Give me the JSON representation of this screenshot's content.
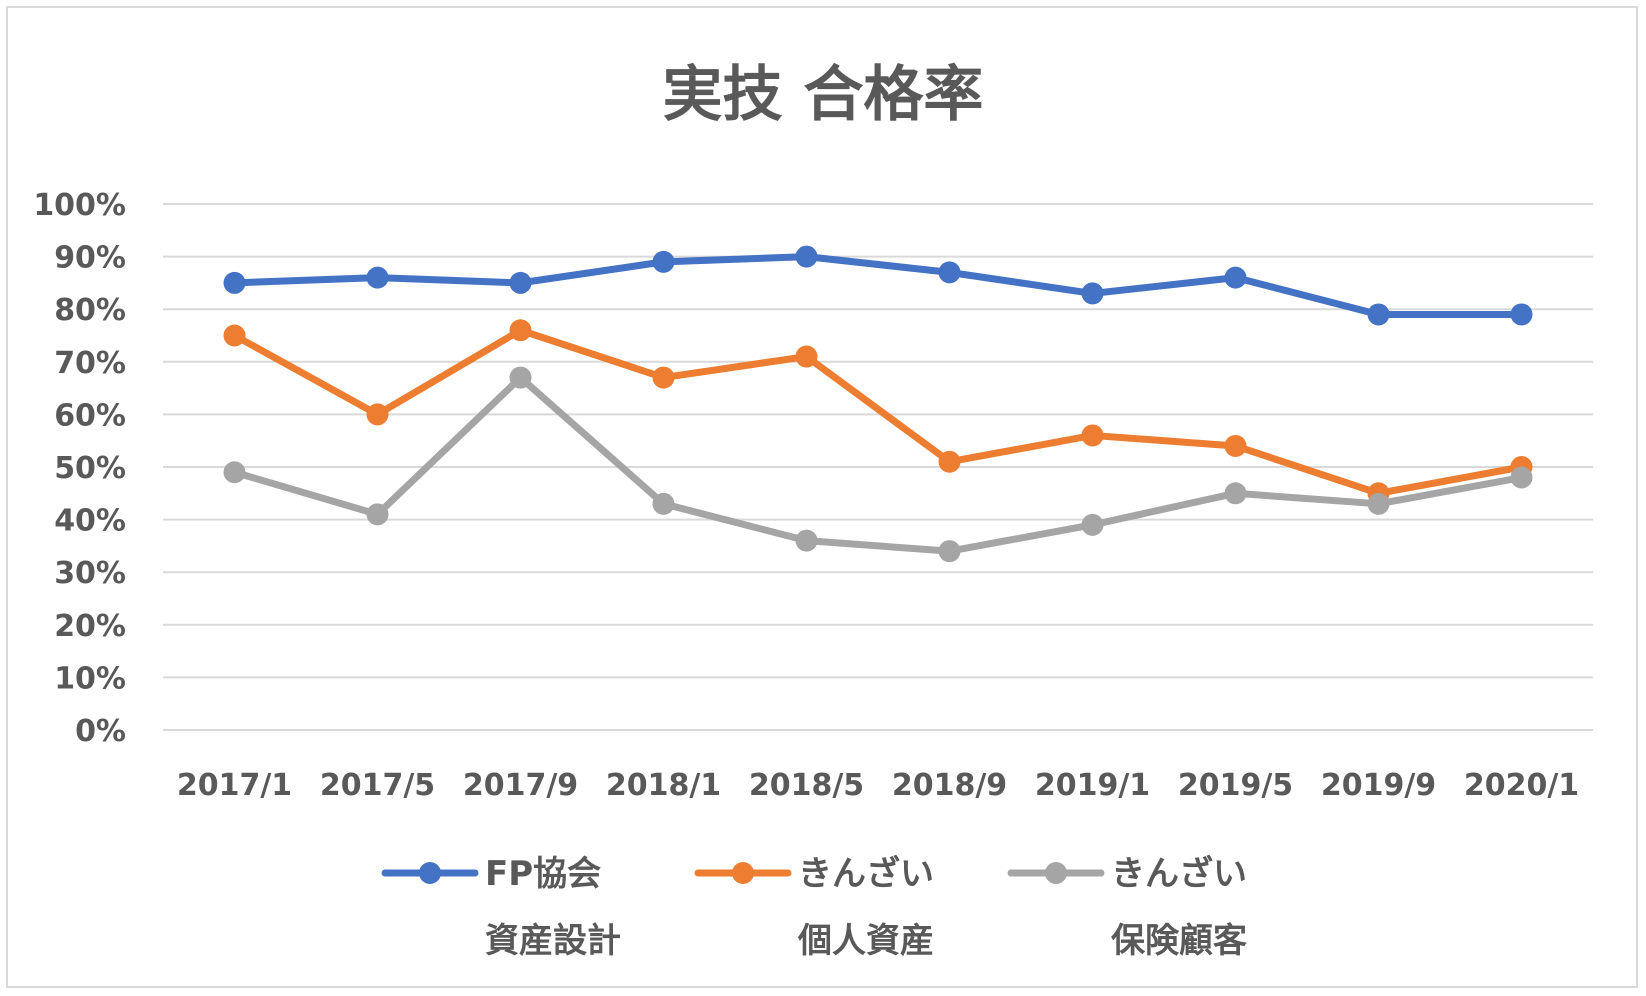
{
  "chart_data": {
    "type": "line",
    "title": "実技 合格率",
    "xlabel": "",
    "ylabel": "",
    "categories": [
      "2017/1",
      "2017/5",
      "2017/9",
      "2018/1",
      "2018/5",
      "2018/9",
      "2019/1",
      "2019/5",
      "2019/9",
      "2020/1"
    ],
    "y_ticks": [
      "0%",
      "10%",
      "20%",
      "30%",
      "40%",
      "50%",
      "60%",
      "70%",
      "80%",
      "90%",
      "100%"
    ],
    "ylim": [
      0,
      100
    ],
    "grid": true,
    "legend_position": "bottom",
    "series": [
      {
        "name": "FP協会 資産設計",
        "name_lines": [
          "FP協会",
          "資産設計"
        ],
        "color": "#4472c4",
        "values": [
          85,
          86,
          85,
          89,
          90,
          87,
          83,
          86,
          79,
          79
        ]
      },
      {
        "name": "きんざい 個人資産",
        "name_lines": [
          "きんざい",
          "個人資産"
        ],
        "color": "#ed7d31",
        "values": [
          75,
          60,
          76,
          67,
          71,
          51,
          56,
          54,
          45,
          50
        ]
      },
      {
        "name": "きんざい 保険顧客",
        "name_lines": [
          "きんざい",
          "保険顧客"
        ],
        "color": "#a5a5a5",
        "values": [
          49,
          41,
          67,
          43,
          36,
          34,
          39,
          45,
          43,
          48
        ]
      }
    ]
  }
}
